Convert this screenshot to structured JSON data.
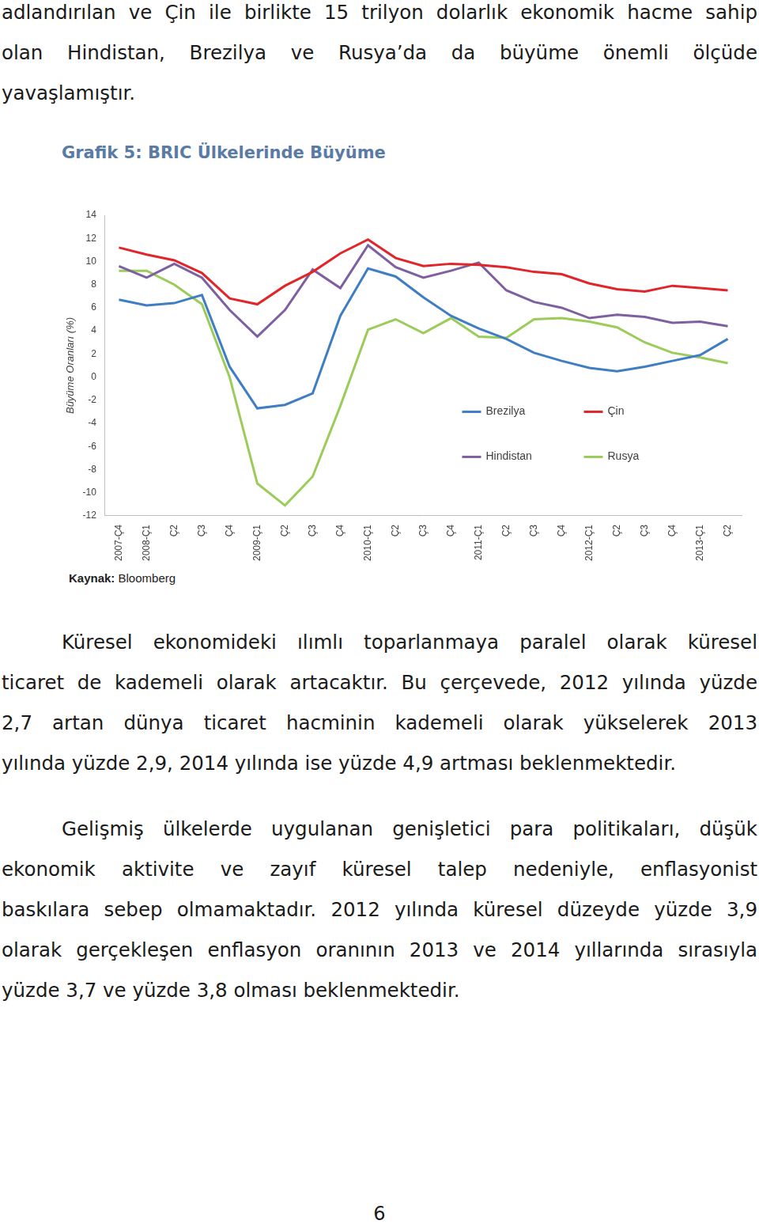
{
  "document": {
    "intro_lines": [
      "adlandırılan ve Çin ile birlikte 15 trilyon dolarlık ekonomik hacme sahip",
      "olan Hindistan, Brezilya ve Rusya’da da büyüme önemli ölçüde",
      "yavaşlamıştır."
    ],
    "figure_title": "Grafik 5: BRIC Ülkelerinde Büyüme",
    "source_label": "Kaynak:",
    "source": "Bloomberg",
    "paragraphs": [
      [
        "Küresel ekonomideki ılımlı toparlanmaya paralel olarak küresel",
        "ticaret de kademeli olarak artacaktır. Bu çerçevede, 2012 yılında yüzde",
        "2,7 artan dünya ticaret hacminin kademeli olarak yükselerek 2013",
        "yılında yüzde 2,9, 2014 yılında ise yüzde 4,9 artması beklenmektedir."
      ],
      [
        "Gelişmiş ülkelerde uygulanan genişletici para politikaları, düşük",
        "ekonomik aktivite ve zayıf küresel talep nedeniyle, enflasyonist",
        "baskılara sebep olmamaktadır. 2012 yılında küresel düzeyde yüzde 3,9",
        "olarak gerçekleşen enflasyon oranının 2013 ve 2014 yıllarında sırasıyla",
        "yüzde 3,7 ve yüzde 3,8 olması beklenmektedir."
      ]
    ],
    "page_number": "6"
  },
  "chart_data": {
    "type": "line",
    "y_label": "Büyüme Oranları (%)",
    "categories": [
      "2007-Ç4",
      "2008-Ç1",
      "Ç2",
      "Ç3",
      "Ç4",
      "2009-Ç1",
      "Ç2",
      "Ç3",
      "Ç4",
      "2010-Ç1",
      "Ç2",
      "Ç3",
      "Ç4",
      "2011-Ç1",
      "Ç2",
      "Ç3",
      "Ç4",
      "2012-Ç1",
      "Ç2",
      "Ç3",
      "Ç4",
      "2013-Ç1",
      "Ç2"
    ],
    "series": [
      {
        "name": "Brezilya",
        "color": "#3f7ec3",
        "values": [
          6.7,
          6.2,
          6.4,
          7.1,
          0.9,
          -2.7,
          -2.4,
          -1.4,
          5.3,
          9.4,
          8.7,
          6.9,
          5.3,
          4.2,
          3.3,
          2.1,
          1.4,
          0.8,
          0.5,
          0.9,
          1.4,
          1.9,
          3.3
        ]
      },
      {
        "name": "Çin",
        "color": "#e0262b",
        "values": [
          11.2,
          10.6,
          10.1,
          9.0,
          6.8,
          6.3,
          7.9,
          9.1,
          10.7,
          11.9,
          10.3,
          9.6,
          9.8,
          9.7,
          9.5,
          9.1,
          8.9,
          8.1,
          7.6,
          7.4,
          7.9,
          7.7,
          7.5
        ]
      },
      {
        "name": "Hindistan",
        "color": "#7e5fa0",
        "values": [
          9.6,
          8.6,
          9.8,
          8.6,
          5.8,
          3.5,
          5.8,
          9.3,
          7.7,
          11.4,
          9.5,
          8.6,
          9.2,
          9.9,
          7.5,
          6.5,
          6.0,
          5.1,
          5.4,
          5.2,
          4.7,
          4.8,
          4.4
        ]
      },
      {
        "name": "Rusya",
        "color": "#9bcc5a",
        "values": [
          9.2,
          9.2,
          8.0,
          6.3,
          0.0,
          -9.2,
          -11.1,
          -8.6,
          -2.5,
          4.1,
          5.0,
          3.8,
          5.1,
          3.5,
          3.4,
          5.0,
          5.1,
          4.8,
          4.3,
          3.0,
          2.1,
          1.7,
          1.2
        ]
      }
    ],
    "ylim": [
      -12,
      14
    ],
    "yticks": [
      -12,
      -10,
      -8,
      -6,
      -4,
      -2,
      0,
      2,
      4,
      6,
      8,
      10,
      12,
      14
    ],
    "grid": false,
    "legend": "inside"
  }
}
